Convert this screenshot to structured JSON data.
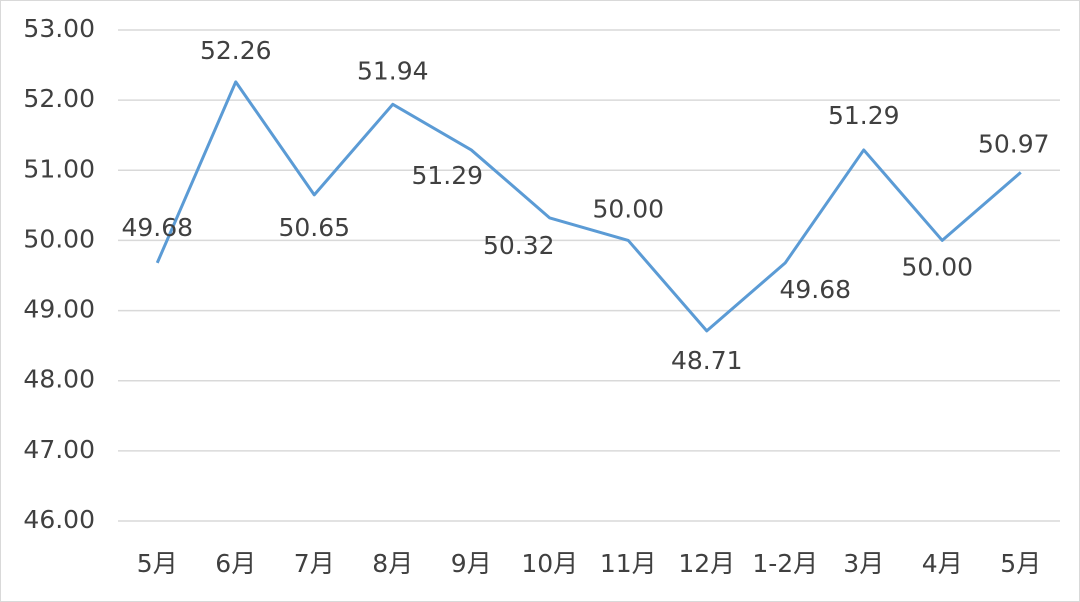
{
  "chart_data": {
    "type": "line",
    "categories": [
      "5月",
      "6月",
      "7月",
      "8月",
      "9月",
      "10月",
      "11月",
      "12月",
      "1-2月",
      "3月",
      "4月",
      "5月"
    ],
    "series": [
      {
        "color": "#5b9bd5",
        "values": [
          49.68,
          52.26,
          50.65,
          51.94,
          51.29,
          50.32,
          50.0,
          48.71,
          49.68,
          51.29,
          50.0,
          50.97
        ],
        "value_labels": [
          "49.68",
          "52.26",
          "50.65",
          "51.94",
          "51.29",
          "50.32",
          "50.00",
          "48.71",
          "49.68",
          "51.29",
          "50.00",
          "50.97"
        ]
      }
    ],
    "ylim": [
      46,
      53
    ],
    "yticks": [
      {
        "value": 46,
        "label": "46.00"
      },
      {
        "value": 47,
        "label": "47.00"
      },
      {
        "value": 48,
        "label": "48.00"
      },
      {
        "value": 49,
        "label": "49.00"
      },
      {
        "value": 50,
        "label": "50.00"
      },
      {
        "value": 51,
        "label": "51.00"
      },
      {
        "value": 52,
        "label": "52.00"
      },
      {
        "value": 53,
        "label": "53.00"
      }
    ],
    "grid": true
  }
}
